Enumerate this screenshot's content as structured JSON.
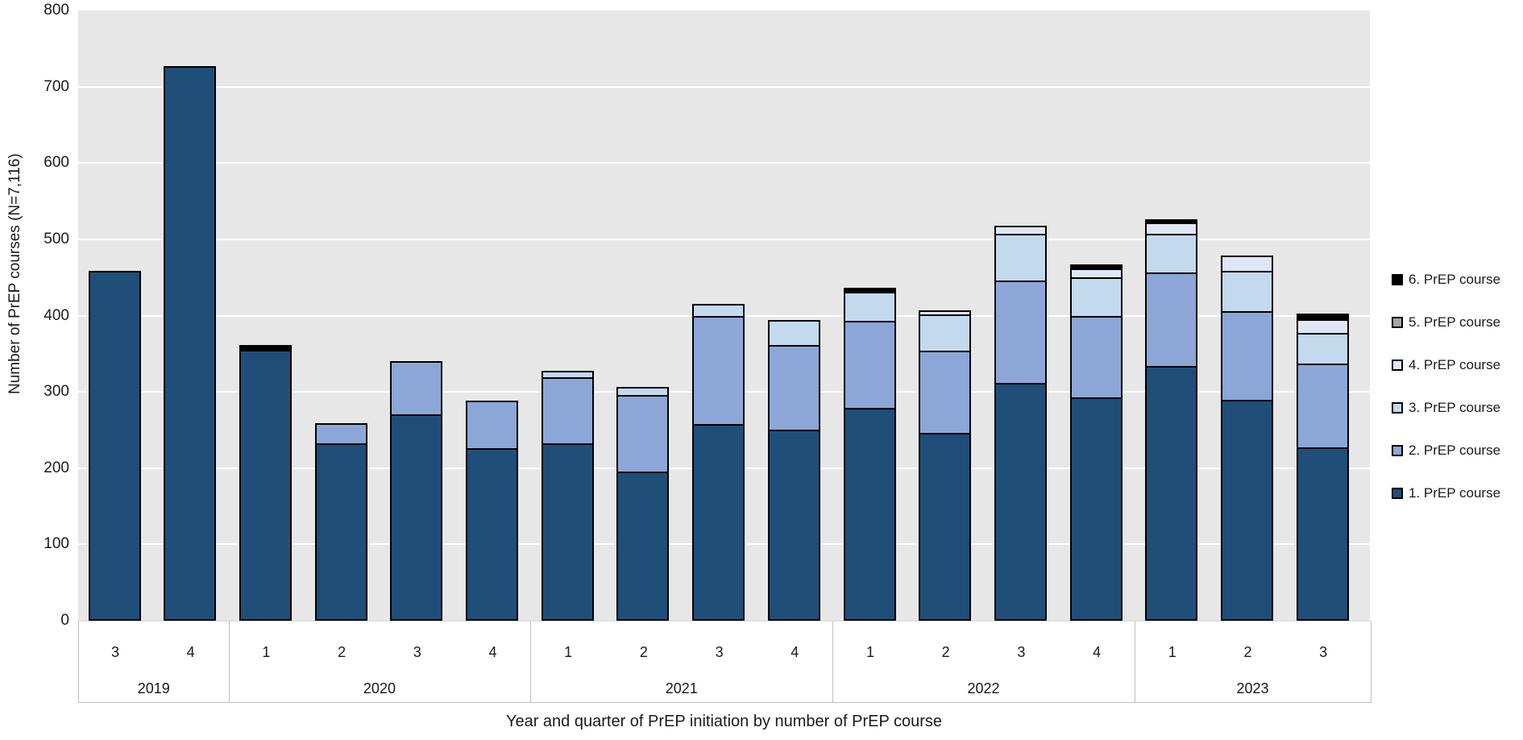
{
  "figure": {
    "y_axis_title": "Number of PrEP courses (N=7,116)",
    "x_axis_title": "Year and quarter of PrEP initiation by number of PrEP course"
  },
  "legend": {
    "position": "right",
    "items": [
      {
        "label": "6. PrEP course",
        "color": "#000000"
      },
      {
        "label": "5. PrEP course",
        "color": "#A6A6A6"
      },
      {
        "label": "4. PrEP course",
        "color": "#DFE7F5"
      },
      {
        "label": "3. PrEP course",
        "color": "#C3D9EE"
      },
      {
        "label": "2. PrEP course",
        "color": "#8CA7D7"
      },
      {
        "label": "1. PrEP course",
        "color": "#1F4E79"
      }
    ]
  },
  "chart_data": {
    "type": "bar",
    "stacked": true,
    "title": "",
    "xlabel": "Year and quarter of PrEP initiation by number of PrEP course",
    "ylabel": "Number of PrEP courses (N=7,116)",
    "ylim": [
      0,
      800
    ],
    "yticks": [
      0,
      100,
      200,
      300,
      400,
      500,
      600,
      700,
      800
    ],
    "grid": "horizontal white gridlines on light-gray plot background",
    "legend_position": "right",
    "plot_background": "#E7E7E7",
    "bar_outline": "#000000",
    "groups": [
      {
        "year": "2019",
        "quarters": [
          "3",
          "4"
        ]
      },
      {
        "year": "2020",
        "quarters": [
          "1",
          "2",
          "3",
          "4"
        ]
      },
      {
        "year": "2021",
        "quarters": [
          "1",
          "2",
          "3",
          "4"
        ]
      },
      {
        "year": "2022",
        "quarters": [
          "1",
          "2",
          "3",
          "4"
        ]
      },
      {
        "year": "2023",
        "quarters": [
          "1",
          "2",
          "3"
        ]
      }
    ],
    "categories": [
      "2019 Q3",
      "2019 Q4",
      "2020 Q1",
      "2020 Q2",
      "2020 Q3",
      "2020 Q4",
      "2021 Q1",
      "2021 Q2",
      "2021 Q3",
      "2021 Q4",
      "2022 Q1",
      "2022 Q2",
      "2022 Q3",
      "2022 Q4",
      "2023 Q1",
      "2023 Q2",
      "2023 Q3"
    ],
    "series": [
      {
        "name": "1. PrEP course",
        "color": "#1F4E79",
        "values": [
          459,
          727,
          355,
          233,
          271,
          226,
          233,
          195,
          258,
          251,
          279,
          246,
          312,
          293,
          334,
          290,
          227
        ]
      },
      {
        "name": "2. PrEP course",
        "color": "#8CA7D7",
        "values": [
          0,
          0,
          0,
          26,
          69,
          63,
          86,
          101,
          142,
          110,
          114,
          108,
          134,
          107,
          123,
          116,
          110
        ]
      },
      {
        "name": "3. PrEP course",
        "color": "#C3D9EE",
        "values": [
          0,
          0,
          0,
          0,
          0,
          0,
          9,
          11,
          15,
          33,
          38,
          48,
          61,
          50,
          50,
          53,
          40
        ]
      },
      {
        "name": "4. PrEP course",
        "color": "#DFE7F5",
        "values": [
          0,
          0,
          0,
          0,
          0,
          0,
          0,
          0,
          0,
          0,
          0,
          5,
          11,
          12,
          15,
          20,
          18
        ]
      },
      {
        "name": "5. PrEP course",
        "color": "#A6A6A6",
        "values": [
          0,
          0,
          0,
          0,
          0,
          0,
          0,
          0,
          0,
          0,
          0,
          0,
          0,
          0,
          0,
          0,
          2
        ]
      },
      {
        "name": "6. PrEP course",
        "color": "#000000",
        "values": [
          0,
          0,
          6,
          0,
          0,
          0,
          0,
          0,
          0,
          0,
          6,
          0,
          0,
          5,
          4,
          0,
          6
        ]
      }
    ],
    "bar_totals": [
      459,
      727,
      361,
      259,
      340,
      289,
      328,
      307,
      415,
      394,
      437,
      407,
      518,
      467,
      526,
      479,
      403
    ],
    "grand_total": 7116
  }
}
